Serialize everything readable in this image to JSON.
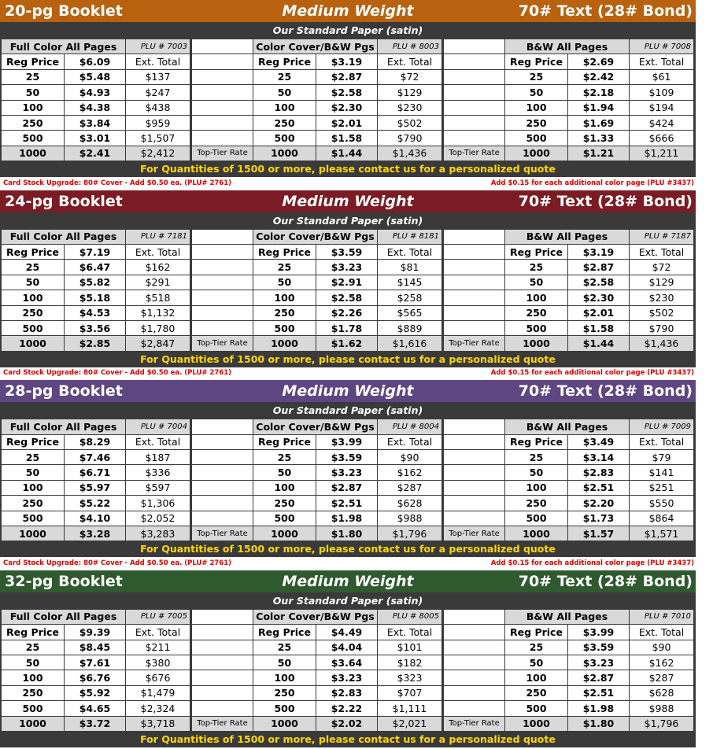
{
  "sections": [
    {
      "title": "20-pg Booklet",
      "weight": "Medium Weight",
      "paper_spec": "70# Text (28# Bond)",
      "paper": "Our Standard Paper (satin)",
      "tables": [
        {
          "name": "Full Color All Pages",
          "plu": "PLU # 7003",
          "reg_label": "Reg Price",
          "reg_price": "$6.09",
          "ext_label": "Ext. Total",
          "rows": [
            [
              "25",
              "$5.48",
              "$137"
            ],
            [
              "50",
              "$4.93",
              "$247"
            ],
            [
              "100",
              "$4.38",
              "$438"
            ],
            [
              "250",
              "$3.84",
              "$959"
            ],
            [
              "500",
              "$3.01",
              "$1,507"
            ],
            [
              "1000",
              "$2.41",
              "$2,412"
            ]
          ]
        },
        {
          "name": "Color Cover/B&W Pgs",
          "plu": "PLU # 8003",
          "reg_label": "Reg Price",
          "reg_price": "$3.19",
          "ext_label": "Ext. Total",
          "rows": [
            [
              "25",
              "$2.87",
              "$72"
            ],
            [
              "50",
              "$2.58",
              "$129"
            ],
            [
              "100",
              "$2.30",
              "$230"
            ],
            [
              "250",
              "$2.01",
              "$502"
            ],
            [
              "500",
              "$1.58",
              "$790"
            ],
            [
              "1000",
              "$1.44",
              "$1,436"
            ]
          ]
        },
        {
          "name": "B&W All Pages",
          "plu": "PLU # 7008",
          "reg_label": "Reg Price",
          "reg_price": "$2.69",
          "ext_label": "Ext. Total",
          "rows": [
            [
              "25",
              "$2.42",
              "$61"
            ],
            [
              "50",
              "$2.18",
              "$109"
            ],
            [
              "100",
              "$1.94",
              "$194"
            ],
            [
              "250",
              "$1.69",
              "$424"
            ],
            [
              "500",
              "$1.33",
              "$666"
            ],
            [
              "1000",
              "$1.21",
              "$1,211"
            ]
          ]
        }
      ],
      "gap_labels": [
        "Top-Tier Rate",
        "Top-Tier Rate"
      ],
      "quote": "For Quantities of 1500 or more, please contact us for a personalized quote",
      "notes": [
        "Card Stock Upgrade: 80# Cover - Add $0.50 ea. (PLU# 2761)",
        "Add $0.15 for each additional color page (PLU #3437)"
      ]
    },
    {
      "title": "24-pg Booklet",
      "weight": "Medium Weight",
      "paper_spec": "70# Text (28# Bond)",
      "paper": "Our Standard Paper (satin)",
      "tables": [
        {
          "name": "Full Color All Pages",
          "plu": "PLU # 7181",
          "reg_label": "Reg Price",
          "reg_price": "$7.19",
          "ext_label": "Ext. Total",
          "rows": [
            [
              "25",
              "$6.47",
              "$162"
            ],
            [
              "50",
              "$5.82",
              "$291"
            ],
            [
              "100",
              "$5.18",
              "$518"
            ],
            [
              "250",
              "$4.53",
              "$1,132"
            ],
            [
              "500",
              "$3.56",
              "$1,780"
            ],
            [
              "1000",
              "$2.85",
              "$2,847"
            ]
          ]
        },
        {
          "name": "Color Cover/B&W Pgs",
          "plu": "PLU # 8181",
          "reg_label": "Reg Price",
          "reg_price": "$3.59",
          "ext_label": "Ext. Total",
          "rows": [
            [
              "25",
              "$3.23",
              "$81"
            ],
            [
              "50",
              "$2.91",
              "$145"
            ],
            [
              "100",
              "$2.58",
              "$258"
            ],
            [
              "250",
              "$2.26",
              "$565"
            ],
            [
              "500",
              "$1.78",
              "$889"
            ],
            [
              "1000",
              "$1.62",
              "$1,616"
            ]
          ]
        },
        {
          "name": "B&W All Pages",
          "plu": "PLU # 7187",
          "reg_label": "Reg Price",
          "reg_price": "$3.19",
          "ext_label": "Ext. Total",
          "rows": [
            [
              "25",
              "$2.87",
              "$72"
            ],
            [
              "50",
              "$2.58",
              "$129"
            ],
            [
              "100",
              "$2.30",
              "$230"
            ],
            [
              "250",
              "$2.01",
              "$502"
            ],
            [
              "500",
              "$1.58",
              "$790"
            ],
            [
              "1000",
              "$1.44",
              "$1,436"
            ]
          ]
        }
      ],
      "gap_labels": [
        "Top-Tier Rate",
        "Top-Tier Rate"
      ],
      "quote": "For Quantities of 1500 or more, please contact us for a personalized quote",
      "notes": [
        "Card Stock Upgrade: 80# Cover - Add $0.50 ea. (PLU# 2761)",
        "Add $0.15 for each additional color page (PLU #3437)"
      ]
    },
    {
      "title": "28-pg Booklet",
      "weight": "Medium Weight",
      "paper_spec": "70# Text (28# Bond)",
      "paper": "Our Standard Paper (satin)",
      "tables": [
        {
          "name": "Full Color All Pages",
          "plu": "PLU # 7004",
          "reg_label": "Reg Price",
          "reg_price": "$8.29",
          "ext_label": "Ext. Total",
          "rows": [
            [
              "25",
              "$7.46",
              "$187"
            ],
            [
              "50",
              "$6.71",
              "$336"
            ],
            [
              "100",
              "$5.97",
              "$597"
            ],
            [
              "250",
              "$5.22",
              "$1,306"
            ],
            [
              "500",
              "$4.10",
              "$2,052"
            ],
            [
              "1000",
              "$3.28",
              "$3,283"
            ]
          ]
        },
        {
          "name": "Color Cover/B&W Pgs",
          "plu": "PLU # 8004",
          "reg_label": "Reg Price",
          "reg_price": "$3.99",
          "ext_label": "Ext. Total",
          "rows": [
            [
              "25",
              "$3.59",
              "$90"
            ],
            [
              "50",
              "$3.23",
              "$162"
            ],
            [
              "100",
              "$2.87",
              "$287"
            ],
            [
              "250",
              "$2.51",
              "$628"
            ],
            [
              "500",
              "$1.98",
              "$988"
            ],
            [
              "1000",
              "$1.80",
              "$1,796"
            ]
          ]
        },
        {
          "name": "B&W All Pages",
          "plu": "PLU # 7009",
          "reg_label": "Reg Price",
          "reg_price": "$3.49",
          "ext_label": "Ext. Total",
          "rows": [
            [
              "25",
              "$3.14",
              "$79"
            ],
            [
              "50",
              "$2.83",
              "$141"
            ],
            [
              "100",
              "$2.51",
              "$251"
            ],
            [
              "250",
              "$2.20",
              "$550"
            ],
            [
              "500",
              "$1.73",
              "$864"
            ],
            [
              "1000",
              "$1.57",
              "$1,571"
            ]
          ]
        }
      ],
      "gap_labels": [
        "Top-Tier Rate",
        "Top-Tier Rate"
      ],
      "quote": "For Quantities of 1500 or more, please contact us for a personalized quote",
      "notes": [
        "Card Stock Upgrade: 80# Cover - Add $0.50 ea. (PLU# 2761)",
        "Add $0.15 for each additional color page (PLU #3437)"
      ]
    },
    {
      "title": "32-pg Booklet",
      "weight": "Medium Weight",
      "paper_spec": "70# Text (28# Bond)",
      "paper": "Our Standard Paper (satin)",
      "tables": [
        {
          "name": "Full Color All Pages",
          "plu": "PLU # 7005",
          "reg_label": "Reg Price",
          "reg_price": "$9.39",
          "ext_label": "Ext. Total",
          "rows": [
            [
              "25",
              "$8.45",
              "$211"
            ],
            [
              "50",
              "$7.61",
              "$380"
            ],
            [
              "100",
              "$6.76",
              "$676"
            ],
            [
              "250",
              "$5.92",
              "$1,479"
            ],
            [
              "500",
              "$4.65",
              "$2,324"
            ],
            [
              "1000",
              "$3.72",
              "$3,718"
            ]
          ]
        },
        {
          "name": "Color Cover/B&W Pgs",
          "plu": "PLU # 8005",
          "reg_label": "Reg Price",
          "reg_price": "$4.49",
          "ext_label": "Ext. Total",
          "rows": [
            [
              "25",
              "$4.04",
              "$101"
            ],
            [
              "50",
              "$3.64",
              "$182"
            ],
            [
              "100",
              "$3.23",
              "$323"
            ],
            [
              "250",
              "$2.83",
              "$707"
            ],
            [
              "500",
              "$2.22",
              "$1,111"
            ],
            [
              "1000",
              "$2.02",
              "$2,021"
            ]
          ]
        },
        {
          "name": "B&W All Pages",
          "plu": "PLU # 7010",
          "reg_label": "Reg Price",
          "reg_price": "$3.99",
          "ext_label": "Ext. Total",
          "rows": [
            [
              "25",
              "$3.59",
              "$90"
            ],
            [
              "50",
              "$3.23",
              "$162"
            ],
            [
              "100",
              "$2.87",
              "$287"
            ],
            [
              "250",
              "$2.51",
              "$628"
            ],
            [
              "500",
              "$1.98",
              "$988"
            ],
            [
              "1000",
              "$1.80",
              "$1,796"
            ]
          ]
        }
      ],
      "gap_labels": [
        "Top-Tier Rate",
        "Top-Tier Rate"
      ],
      "quote": "For Quantities of 1500 or more, please contact us for a personalized quote"
    }
  ]
}
